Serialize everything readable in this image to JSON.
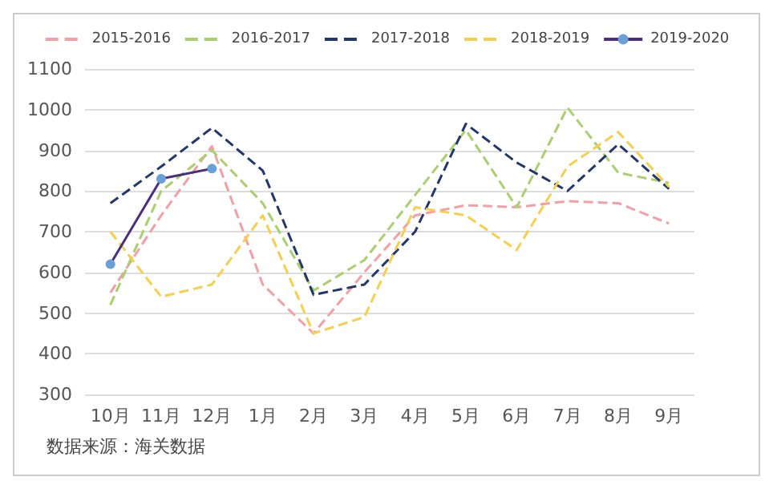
{
  "chart_data": {
    "type": "line",
    "categories": [
      "10月",
      "11月",
      "12月",
      "1月",
      "2月",
      "3月",
      "4月",
      "5月",
      "6月",
      "7月",
      "8月",
      "9月"
    ],
    "series": [
      {
        "name": "2015-2016",
        "color": "#f2a0a6",
        "line_style": "dashed",
        "marker": "none",
        "values": [
          550,
          740,
          910,
          570,
          450,
          600,
          740,
          765,
          760,
          775,
          770,
          720
        ]
      },
      {
        "name": "2016-2017",
        "color": "#a9cf6e",
        "line_style": "dashed",
        "marker": "none",
        "values": [
          520,
          800,
          900,
          770,
          555,
          630,
          790,
          950,
          760,
          1005,
          845,
          820
        ]
      },
      {
        "name": "2017-2018",
        "color": "#22386b",
        "line_style": "dashed",
        "marker": "none",
        "values": [
          770,
          860,
          955,
          850,
          545,
          570,
          700,
          965,
          870,
          800,
          915,
          805
        ]
      },
      {
        "name": "2018-2019",
        "color": "#f7cf4f",
        "line_style": "dashed",
        "marker": "none",
        "values": [
          700,
          540,
          570,
          740,
          450,
          490,
          760,
          740,
          655,
          860,
          945,
          810
        ]
      },
      {
        "name": "2019-2020",
        "color": "#4b2f7f",
        "line_style": "solid",
        "marker": "circle",
        "values": [
          620,
          830,
          855,
          null,
          null,
          null,
          null,
          null,
          null,
          null,
          null,
          null
        ]
      }
    ],
    "ylim": [
      300,
      1100
    ],
    "yticks": [
      300,
      400,
      500,
      600,
      700,
      800,
      900,
      1000,
      1100
    ],
    "grid": "y",
    "legend": "top",
    "annotations": [
      "数据来源：海关数据"
    ]
  }
}
